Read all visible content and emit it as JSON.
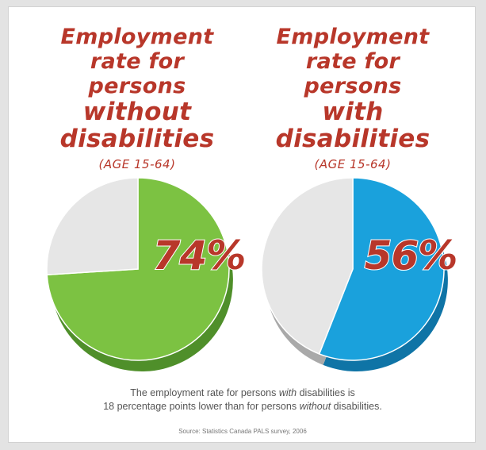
{
  "colors": {
    "title": "#b8372a",
    "without_fill": "#7cc242",
    "without_side": "#4f8f2a",
    "with_fill": "#1aa1dc",
    "with_side": "#0f74a6",
    "rest_fill": "#e6e6e6",
    "rest_side": "#a9a9a9"
  },
  "chart_data": [
    {
      "type": "pie",
      "title_lines": [
        "Employment",
        "rate for",
        "persons",
        "without",
        "disabilities"
      ],
      "subtitle": "(AGE 15-64)",
      "label": "74%",
      "values": [
        74,
        26
      ]
    },
    {
      "type": "pie",
      "title_lines": [
        "Employment",
        "rate for",
        "persons",
        "with",
        "disabilities"
      ],
      "subtitle": "(AGE 15-64)",
      "label": "56%",
      "values": [
        56,
        44
      ]
    }
  ],
  "footer": {
    "line1_a": "The employment rate for persons ",
    "line1_em": "with",
    "line1_b": " disabilities is",
    "line2_a": "18 percentage points lower than for persons ",
    "line2_em": "without",
    "line2_b": " disabilities.",
    "source": "Source: Statistics Canada PALS survey, 2006"
  }
}
